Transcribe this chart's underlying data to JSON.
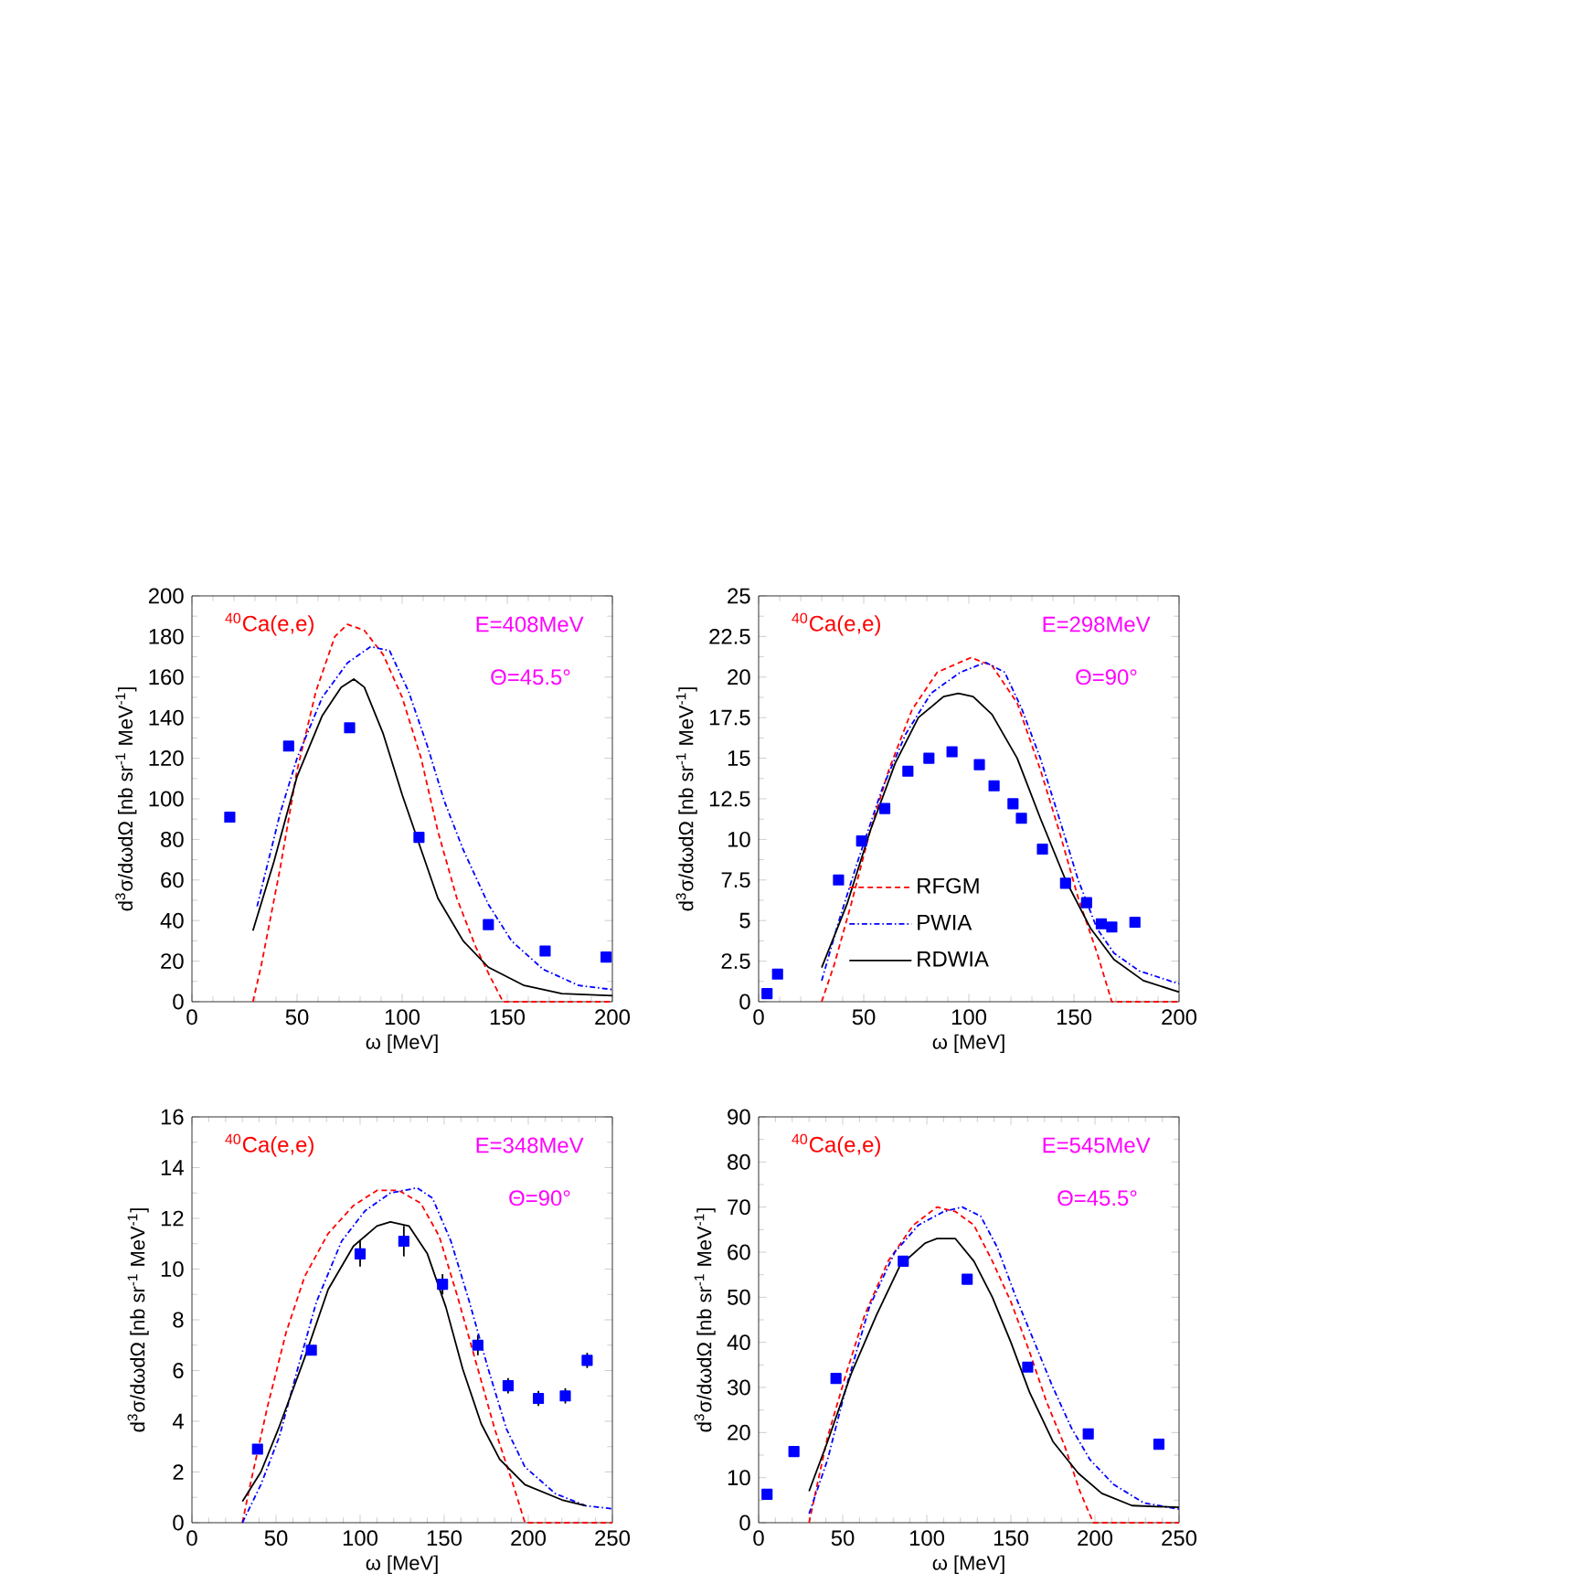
{
  "chart_data": [
    {
      "type": "line",
      "xlabel": "ω [MeV]",
      "ylabel": "d$^{3}$σ/dωdΩ  [nb sr$^{-1}$ MeV$^{-1}$]",
      "xlim": [
        0,
        200
      ],
      "ylim": [
        0,
        200
      ],
      "xticks": [
        0,
        50,
        100,
        150,
        200
      ],
      "yticks": [
        0,
        20,
        40,
        60,
        80,
        100,
        120,
        140,
        160,
        180,
        200
      ],
      "annotations": [
        "$^{40}$Ca(e,e)",
        "E=408MeV",
        "Θ=45.5°"
      ],
      "series": [
        {
          "type": "scatter",
          "marker": "square",
          "color": "#0000ff",
          "x": [
            18,
            46,
            75,
            108,
            141,
            168,
            197
          ],
          "values": [
            91,
            126,
            135,
            81,
            38,
            25,
            22
          ]
        },
        {
          "color": "#ff0000",
          "line_style": "dashed",
          "x": [
            29,
            33,
            42,
            50,
            59,
            68,
            74,
            82,
            91,
            100,
            109,
            117,
            126,
            135,
            142,
            148,
            160,
            200
          ],
          "values": [
            0,
            18,
            66,
            114,
            153,
            180,
            186,
            183,
            171,
            150,
            120,
            84,
            51,
            27,
            12,
            0,
            0,
            0
          ]
        },
        {
          "color": "#0000ff",
          "line_style": "dashdot",
          "x": [
            31,
            42,
            50,
            62,
            74,
            85,
            94,
            103,
            112,
            120,
            129,
            141,
            152,
            167,
            184,
            200
          ],
          "values": [
            47,
            93,
            120,
            150,
            167,
            175,
            173,
            153,
            126,
            99,
            75,
            48,
            30,
            16,
            8,
            6
          ]
        },
        {
          "color": "#000000",
          "line_style": "solid",
          "x": [
            29,
            39,
            50,
            62,
            71,
            77,
            82,
            91,
            100,
            109,
            117,
            129,
            141,
            158,
            176,
            200
          ],
          "values": [
            35,
            69,
            111,
            141,
            155,
            159,
            155,
            132,
            102,
            75,
            51,
            30,
            17,
            8,
            4,
            3
          ]
        }
      ]
    },
    {
      "type": "line",
      "xlabel": "ω [MeV]",
      "ylabel": "d$^{3}$σ/dωdΩ  [nb sr$^{-1}$ MeV$^{-1}$]",
      "xlim": [
        0,
        200
      ],
      "ylim": [
        0,
        25
      ],
      "xticks": [
        0,
        50,
        100,
        150,
        200
      ],
      "yticks": [
        0,
        2.5,
        5,
        7.5,
        10,
        12.5,
        15,
        17.5,
        20,
        22.5,
        25
      ],
      "legend": "bottom left",
      "annotations": [
        "$^{40}$Ca(e,e)",
        "E=298MeV",
        "Θ=90°"
      ],
      "series": [
        {
          "type": "scatter",
          "marker": "square",
          "color": "#0000ff",
          "x": [
            4,
            9,
            38,
            49,
            60,
            71,
            81,
            92,
            105,
            112,
            121,
            125,
            135,
            146,
            156,
            163,
            168,
            179
          ],
          "values": [
            0.5,
            1.7,
            7.5,
            9.9,
            11.9,
            14.2,
            15,
            15.4,
            14.6,
            13.3,
            12.2,
            11.3,
            9.4,
            7.3,
            6.1,
            4.8,
            4.6,
            4.9
          ]
        },
        {
          "name": "RFGM",
          "color": "#ff0000",
          "line_style": "dashed",
          "x": [
            30,
            36,
            44,
            53,
            62,
            73,
            85,
            101,
            111,
            123,
            134,
            143,
            152,
            161,
            168,
            200
          ],
          "values": [
            0,
            2.3,
            6,
            10.5,
            14.3,
            18,
            20.3,
            21.2,
            20.7,
            18.4,
            14.3,
            10.5,
            6.4,
            3,
            0,
            0
          ]
        },
        {
          "name": "PWIA",
          "color": "#0000ff",
          "line_style": "dashdot",
          "x": [
            30,
            38,
            47,
            59,
            70,
            82,
            96,
            108,
            117,
            125,
            134,
            143,
            152,
            161,
            169,
            181,
            200
          ],
          "values": [
            1.3,
            4.9,
            8.6,
            13.2,
            16.5,
            19,
            20.3,
            20.9,
            20.3,
            18.1,
            15,
            11.3,
            7.5,
            4.5,
            3,
            1.9,
            1.1
          ]
        },
        {
          "name": "RDWIA",
          "color": "#000000",
          "line_style": "solid",
          "x": [
            30,
            42,
            53,
            65,
            76,
            88,
            95,
            102,
            111,
            123,
            134,
            146,
            158,
            169,
            183,
            200
          ],
          "values": [
            2.1,
            6,
            10.5,
            14.7,
            17.5,
            18.8,
            19,
            18.8,
            17.7,
            15,
            11.3,
            7.5,
            4.5,
            2.6,
            1.3,
            0.6
          ]
        }
      ]
    },
    {
      "type": "line",
      "xlabel": "ω [MeV]",
      "ylabel": "d$^{3}$σ/dωdΩ  [nb sr$^{-1}$ MeV$^{-1}$]",
      "xlim": [
        0,
        250
      ],
      "ylim": [
        0,
        16
      ],
      "xticks": [
        0,
        50,
        100,
        150,
        200,
        250
      ],
      "yticks": [
        0,
        2,
        4,
        6,
        8,
        10,
        12,
        14,
        16
      ],
      "annotations": [
        "$^{40}$Ca(e,e)",
        "E=348MeV",
        "Θ=90°"
      ],
      "series": [
        {
          "type": "scatter",
          "marker": "square",
          "color": "#0000ff",
          "x": [
            39,
            71,
            100,
            126,
            149,
            170,
            188,
            206,
            222,
            235
          ],
          "values": [
            2.9,
            6.8,
            10.6,
            11.1,
            9.4,
            7.0,
            5.4,
            4.9,
            5.0,
            6.4
          ],
          "errors": [
            null,
            null,
            0.5,
            0.6,
            0.4,
            0.4,
            0.3,
            0.3,
            0.3,
            0.3
          ]
        },
        {
          "color": "#ff0000",
          "line_style": "dashed",
          "x": [
            30,
            34,
            45,
            56,
            67,
            81,
            96,
            110,
            123,
            136,
            147,
            158,
            169,
            180,
            191,
            198,
            250
          ],
          "values": [
            0,
            1.3,
            4.6,
            7.5,
            9.7,
            11.4,
            12.5,
            13.1,
            13.1,
            12.6,
            11.3,
            8.9,
            6.3,
            3.7,
            1.5,
            0,
            0
          ]
        },
        {
          "color": "#0000ff",
          "line_style": "dashdot",
          "x": [
            30,
            41,
            52,
            63,
            74,
            89,
            103,
            118,
            134,
            143,
            154,
            165,
            176,
            187,
            198,
            216,
            234,
            250
          ],
          "values": [
            0,
            1.5,
            3.4,
            6.1,
            8.7,
            11.1,
            12.3,
            13,
            13.2,
            12.8,
            11.1,
            8.7,
            6.1,
            3.7,
            2.2,
            1.15,
            0.67,
            0.55
          ]
        },
        {
          "color": "#000000",
          "line_style": "solid",
          "x": [
            30,
            41,
            52,
            67,
            81,
            96,
            110,
            118,
            129,
            140,
            151,
            161,
            172,
            183,
            198,
            220,
            234
          ],
          "values": [
            0.84,
            2,
            3.8,
            6.5,
            9.2,
            10.9,
            11.7,
            11.86,
            11.7,
            10.6,
            8.5,
            6.06,
            3.9,
            2.5,
            1.5,
            0.9,
            0.67
          ]
        }
      ]
    },
    {
      "type": "line",
      "xlabel": "ω [MeV]",
      "ylabel": "d$^{3}$σ/dωdΩ  [nb sr$^{-1}$ MeV$^{-1}$]",
      "xlim": [
        0,
        250
      ],
      "ylim": [
        0,
        90
      ],
      "xticks": [
        0,
        50,
        100,
        150,
        200,
        250
      ],
      "yticks": [
        0,
        10,
        20,
        30,
        40,
        50,
        60,
        70,
        80,
        90
      ],
      "annotations": [
        "$^{40}$Ca(e,e)",
        "E=545MeV",
        "Θ=45.5°"
      ],
      "series": [
        {
          "type": "scatter",
          "marker": "square",
          "color": "#0000ff",
          "x": [
            5,
            21,
            46,
            86,
            124,
            160,
            196,
            238
          ],
          "values": [
            6.3,
            15.8,
            32,
            58,
            54,
            34.5,
            19.7,
            17.4
          ]
        },
        {
          "color": "#ff0000",
          "line_style": "dashed",
          "x": [
            30,
            34,
            41,
            52,
            63,
            77,
            92,
            106,
            117,
            128,
            139,
            150,
            161,
            171,
            182,
            191,
            199,
            250
          ],
          "values": [
            0,
            7,
            19,
            33,
            46,
            58,
            66,
            70,
            69,
            66,
            58,
            49,
            38,
            27,
            17,
            7,
            0,
            0
          ]
        },
        {
          "color": "#0000ff",
          "line_style": "dashdot",
          "x": [
            30,
            41,
            52,
            66,
            81,
            95,
            110,
            121,
            132,
            142,
            153,
            164,
            175,
            186,
            197,
            211,
            229,
            250
          ],
          "values": [
            2,
            14,
            30,
            48,
            60,
            66,
            69,
            70,
            68,
            61,
            50,
            40,
            30,
            21,
            14,
            8.5,
            4.4,
            3
          ]
        },
        {
          "color": "#000000",
          "line_style": "solid",
          "x": [
            30,
            41,
            55,
            70,
            84,
            99,
            106,
            117,
            128,
            139,
            150,
            161,
            175,
            190,
            204,
            222,
            250
          ],
          "values": [
            7,
            18,
            33,
            46,
            57,
            62,
            63,
            63,
            58,
            50,
            40,
            29,
            18,
            11,
            6.5,
            3.8,
            3.4
          ]
        }
      ]
    }
  ]
}
